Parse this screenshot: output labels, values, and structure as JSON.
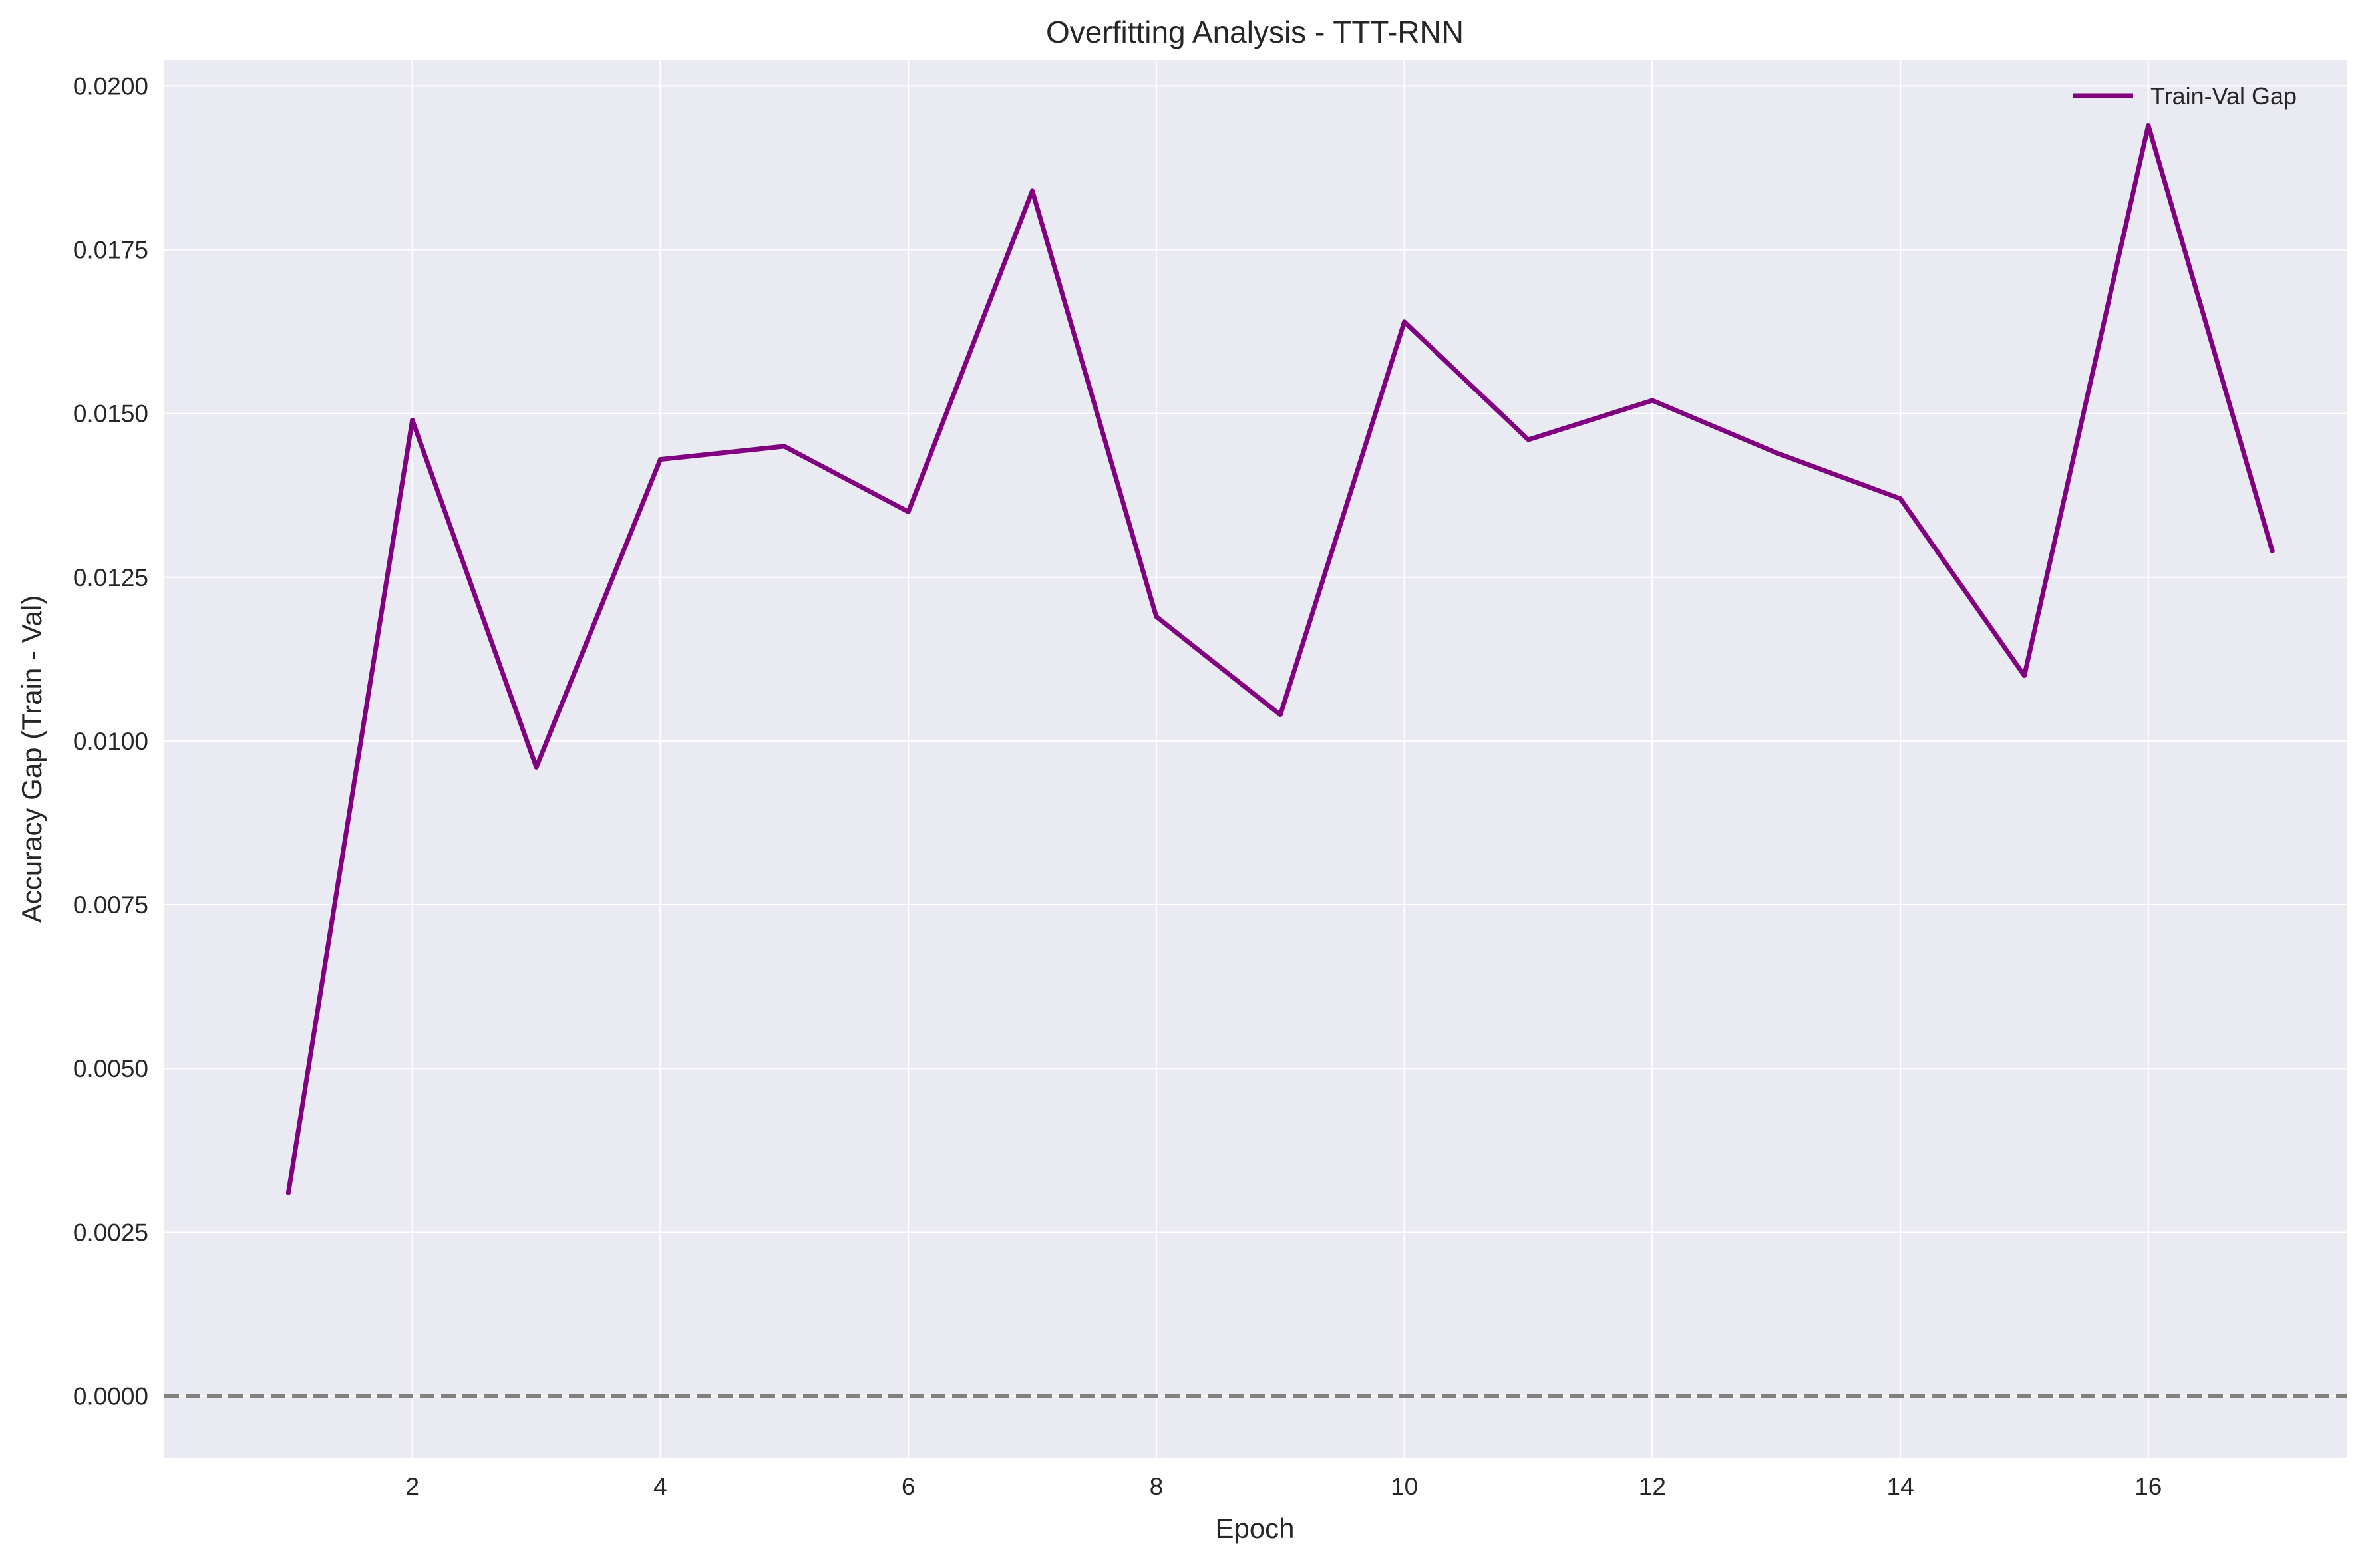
{
  "chart_data": {
    "type": "line",
    "title": "Overfitting Analysis - TTT-RNN",
    "xlabel": "Epoch",
    "ylabel": "Accuracy Gap (Train - Val)",
    "xlim": [
      0.0,
      17.6
    ],
    "ylim": [
      -0.00095,
      0.0204
    ],
    "xticks": [
      2,
      4,
      6,
      8,
      10,
      12,
      14,
      16
    ],
    "xtick_labels": [
      "2",
      "4",
      "6",
      "8",
      "10",
      "12",
      "14",
      "16"
    ],
    "yticks": [
      0.0,
      0.0025,
      0.005,
      0.0075,
      0.01,
      0.0125,
      0.015,
      0.0175,
      0.02
    ],
    "ytick_labels": [
      "0.0000",
      "0.0025",
      "0.0050",
      "0.0075",
      "0.0100",
      "0.0125",
      "0.0150",
      "0.0175",
      "0.0200"
    ],
    "grid": true,
    "legend_position": "top-right",
    "background_color": "#eaeaf2",
    "grid_color": "#ffffff",
    "series": [
      {
        "name": "Train-Val Gap",
        "color": "#800080",
        "x": [
          1,
          2,
          3,
          4,
          5,
          6,
          7,
          8,
          9,
          10,
          11,
          12,
          13,
          14,
          15,
          16,
          17
        ],
        "y": [
          0.0031,
          0.0149,
          0.0096,
          0.0143,
          0.0145,
          0.0135,
          0.0184,
          0.0119,
          0.0104,
          0.0164,
          0.0146,
          0.0152,
          0.0144,
          0.0137,
          0.011,
          0.0194,
          0.0129
        ]
      }
    ],
    "reference_lines": [
      {
        "y": 0.0,
        "style": "dashed",
        "color": "#808080"
      }
    ]
  }
}
